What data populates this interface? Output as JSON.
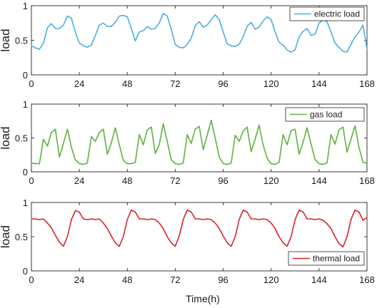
{
  "figure": {
    "xlabel": "Time(h)"
  },
  "chart_data": [
    {
      "type": "line",
      "ylabel": "load",
      "xlim": [
        0,
        168
      ],
      "ylim": [
        0,
        1
      ],
      "xticks": [
        0,
        24,
        48,
        72,
        96,
        120,
        144,
        168
      ],
      "xtick_labels": [
        "0",
        "24",
        "48",
        "72",
        "96",
        "120",
        "144",
        "168"
      ],
      "yticks": [
        0,
        0.5,
        1
      ],
      "ytick_labels": [
        "0",
        "0.5",
        "1"
      ],
      "legend_position": "top-right",
      "series": [
        {
          "name": "electric load",
          "color": "#4DAEE2",
          "x": [
            0,
            2,
            4,
            6,
            8,
            10,
            12,
            14,
            16,
            18,
            20,
            22,
            24,
            26,
            28,
            30,
            32,
            34,
            36,
            38,
            40,
            42,
            44,
            46,
            48,
            50,
            52,
            54,
            56,
            58,
            60,
            62,
            64,
            66,
            68,
            70,
            72,
            74,
            76,
            78,
            80,
            82,
            84,
            86,
            88,
            90,
            92,
            94,
            96,
            98,
            100,
            102,
            104,
            106,
            108,
            110,
            112,
            114,
            116,
            118,
            120,
            122,
            124,
            126,
            128,
            130,
            132,
            134,
            136,
            138,
            140,
            142,
            144,
            146,
            148,
            150,
            152,
            154,
            156,
            158,
            160,
            162,
            164,
            166,
            168
          ],
          "y": [
            0.42,
            0.39,
            0.37,
            0.46,
            0.68,
            0.74,
            0.67,
            0.67,
            0.72,
            0.85,
            0.82,
            0.62,
            0.46,
            0.42,
            0.4,
            0.43,
            0.57,
            0.72,
            0.75,
            0.7,
            0.7,
            0.76,
            0.85,
            0.86,
            0.84,
            0.67,
            0.49,
            0.62,
            0.64,
            0.7,
            0.66,
            0.67,
            0.75,
            0.89,
            0.85,
            0.66,
            0.44,
            0.4,
            0.39,
            0.44,
            0.53,
            0.71,
            0.77,
            0.69,
            0.72,
            0.8,
            0.87,
            0.8,
            0.62,
            0.45,
            0.42,
            0.41,
            0.44,
            0.55,
            0.7,
            0.76,
            0.66,
            0.69,
            0.78,
            0.84,
            0.8,
            0.62,
            0.47,
            0.43,
            0.36,
            0.33,
            0.36,
            0.55,
            0.63,
            0.67,
            0.57,
            0.59,
            0.75,
            0.79,
            0.77,
            0.62,
            0.46,
            0.4,
            0.34,
            0.33,
            0.44,
            0.55,
            0.62,
            0.72,
            0.37
          ]
        }
      ]
    },
    {
      "type": "line",
      "ylabel": "load",
      "xlim": [
        0,
        168
      ],
      "ylim": [
        0,
        1
      ],
      "xticks": [
        0,
        24,
        48,
        72,
        96,
        120,
        144,
        168
      ],
      "xtick_labels": [
        "0",
        "24",
        "48",
        "72",
        "96",
        "120",
        "144",
        "168"
      ],
      "yticks": [
        0,
        0.5,
        1
      ],
      "ytick_labels": [
        "0",
        "0.5",
        "1"
      ],
      "legend_position": "top-right",
      "series": [
        {
          "name": "gas load",
          "color": "#5DB33E",
          "x": [
            0,
            2,
            4,
            6,
            8,
            10,
            12,
            14,
            16,
            18,
            20,
            22,
            24,
            26,
            28,
            30,
            32,
            34,
            36,
            38,
            40,
            42,
            44,
            46,
            48,
            50,
            52,
            54,
            56,
            58,
            60,
            62,
            64,
            66,
            68,
            70,
            72,
            74,
            76,
            78,
            80,
            82,
            84,
            86,
            88,
            90,
            92,
            94,
            96,
            98,
            100,
            102,
            104,
            106,
            108,
            110,
            112,
            114,
            116,
            118,
            120,
            122,
            124,
            126,
            128,
            130,
            132,
            134,
            136,
            138,
            140,
            142,
            144,
            146,
            148,
            150,
            152,
            154,
            156,
            158,
            160,
            162,
            164,
            166,
            168
          ],
          "y": [
            0.13,
            0.12,
            0.12,
            0.48,
            0.38,
            0.58,
            0.63,
            0.22,
            0.42,
            0.63,
            0.36,
            0.18,
            0.12,
            0.11,
            0.13,
            0.52,
            0.45,
            0.58,
            0.63,
            0.26,
            0.43,
            0.65,
            0.4,
            0.17,
            0.12,
            0.12,
            0.14,
            0.55,
            0.4,
            0.62,
            0.66,
            0.27,
            0.4,
            0.71,
            0.45,
            0.18,
            0.12,
            0.11,
            0.13,
            0.55,
            0.42,
            0.63,
            0.67,
            0.33,
            0.54,
            0.76,
            0.5,
            0.22,
            0.12,
            0.11,
            0.13,
            0.54,
            0.45,
            0.6,
            0.66,
            0.3,
            0.48,
            0.69,
            0.4,
            0.2,
            0.12,
            0.11,
            0.14,
            0.55,
            0.4,
            0.61,
            0.63,
            0.26,
            0.44,
            0.65,
            0.41,
            0.18,
            0.12,
            0.11,
            0.13,
            0.55,
            0.41,
            0.62,
            0.66,
            0.29,
            0.48,
            0.68,
            0.36,
            0.14,
            0.13
          ]
        }
      ]
    },
    {
      "type": "line",
      "ylabel": "load",
      "xlim": [
        0,
        168
      ],
      "ylim": [
        0,
        1
      ],
      "xticks": [
        0,
        24,
        48,
        72,
        96,
        120,
        144,
        168
      ],
      "xtick_labels": [
        "0",
        "24",
        "48",
        "72",
        "96",
        "120",
        "144",
        "168"
      ],
      "yticks": [
        0,
        0.5,
        1
      ],
      "ytick_labels": [
        "0",
        "0.5",
        "1"
      ],
      "legend_position": "bottom-right",
      "series": [
        {
          "name": "thermal load",
          "color": "#D9232A",
          "x": [
            0,
            2,
            4,
            6,
            8,
            10,
            12,
            14,
            16,
            18,
            20,
            22,
            24,
            26,
            28,
            30,
            32,
            34,
            36,
            38,
            40,
            42,
            44,
            46,
            48,
            50,
            52,
            54,
            56,
            58,
            60,
            62,
            64,
            66,
            68,
            70,
            72,
            74,
            76,
            78,
            80,
            82,
            84,
            86,
            88,
            90,
            92,
            94,
            96,
            98,
            100,
            102,
            104,
            106,
            108,
            110,
            112,
            114,
            116,
            118,
            120,
            122,
            124,
            126,
            128,
            130,
            132,
            134,
            136,
            138,
            140,
            142,
            144,
            146,
            148,
            150,
            152,
            154,
            156,
            158,
            160,
            162,
            164,
            166,
            168
          ],
          "y": [
            0.76,
            0.76,
            0.75,
            0.76,
            0.7,
            0.63,
            0.52,
            0.42,
            0.36,
            0.5,
            0.75,
            0.88,
            0.86,
            0.76,
            0.75,
            0.76,
            0.75,
            0.76,
            0.7,
            0.62,
            0.51,
            0.41,
            0.36,
            0.5,
            0.75,
            0.89,
            0.86,
            0.76,
            0.76,
            0.75,
            0.76,
            0.75,
            0.7,
            0.62,
            0.5,
            0.41,
            0.36,
            0.51,
            0.75,
            0.89,
            0.86,
            0.76,
            0.76,
            0.75,
            0.76,
            0.75,
            0.7,
            0.62,
            0.51,
            0.41,
            0.36,
            0.5,
            0.75,
            0.89,
            0.86,
            0.76,
            0.76,
            0.75,
            0.76,
            0.75,
            0.7,
            0.62,
            0.5,
            0.41,
            0.36,
            0.5,
            0.75,
            0.89,
            0.86,
            0.76,
            0.76,
            0.75,
            0.76,
            0.74,
            0.69,
            0.62,
            0.5,
            0.4,
            0.35,
            0.5,
            0.75,
            0.89,
            0.86,
            0.74,
            0.78
          ]
        }
      ]
    }
  ]
}
